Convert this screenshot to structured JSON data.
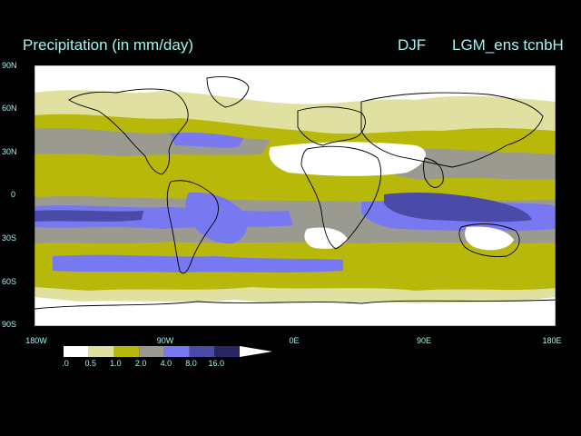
{
  "title": {
    "variable": "Precipitation (in mm/day)",
    "season": "DJF",
    "run": "LGM_ens tcnbH"
  },
  "axes": {
    "lat_labels": [
      "90N",
      "60N",
      "30N",
      "0",
      "30S",
      "60S",
      "90S"
    ],
    "lon_labels": [
      "180W",
      "90W",
      "0E",
      "90E",
      "180E"
    ]
  },
  "legend": {
    "levels": [
      ".0",
      "0.5",
      "1.0",
      "2.0",
      "4.0",
      "8.0",
      "16.0"
    ],
    "colors": [
      "#ffffff",
      "#e0e0a0",
      "#b8b80a",
      "#9a9a90",
      "#7878f0",
      "#4a4aa8",
      "#262660"
    ]
  },
  "colors": {
    "text": "#9ff7ef",
    "background": "#000000",
    "coastline": "#000000"
  }
}
